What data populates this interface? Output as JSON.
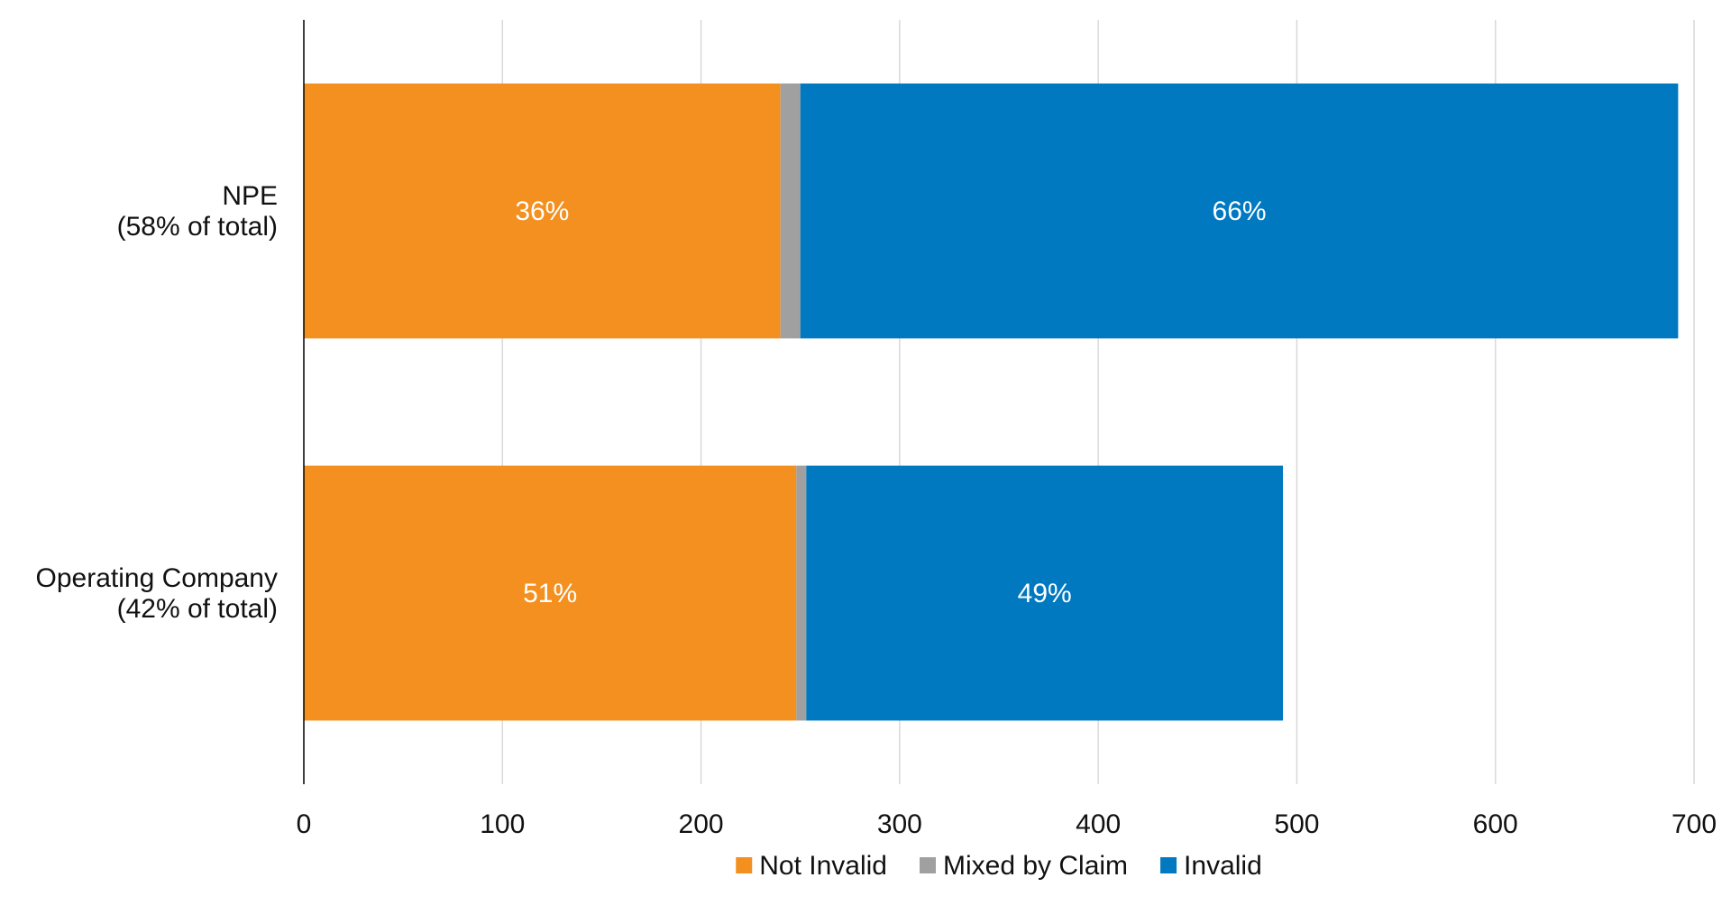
{
  "chart_data": {
    "type": "bar",
    "orientation": "horizontal",
    "stacked": true,
    "categories": [
      "NPE\n(58% of total)",
      "Operating Company\n(42% of total)"
    ],
    "series": [
      {
        "name": "Not Invalid",
        "color": "#F39020",
        "values": [
          240,
          248
        ],
        "labels": [
          "36%",
          "51%"
        ]
      },
      {
        "name": "Mixed by Claim",
        "color": "#A0A0A0",
        "values": [
          10,
          5
        ],
        "labels": [
          "",
          ""
        ]
      },
      {
        "name": "Invalid",
        "color": "#0079C1",
        "values": [
          442,
          240
        ],
        "labels": [
          "66%",
          "49%"
        ]
      }
    ],
    "xlim": [
      0,
      700
    ],
    "xticks": [
      "0",
      "100",
      "200",
      "300",
      "400",
      "500",
      "600",
      "700"
    ],
    "grid": true,
    "legend_position": "bottom"
  }
}
